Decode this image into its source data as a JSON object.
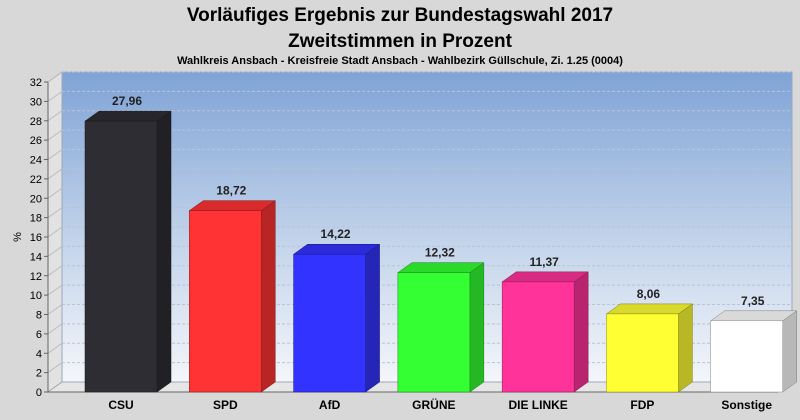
{
  "chart_data": {
    "type": "bar",
    "title": "Vorläufiges Ergebnis zur Bundestagswahl 2017",
    "subtitle": "Zweitstimmen in Prozent",
    "caption": "Wahlkreis Ansbach - Kreisfreie Stadt Ansbach - Wahlbezirk Güllschule, Zi. 1.25 (0004)",
    "ylabel": "%",
    "ylim": [
      0,
      32
    ],
    "yticks": [
      0,
      2,
      4,
      6,
      8,
      10,
      12,
      14,
      16,
      18,
      20,
      22,
      24,
      26,
      28,
      30,
      32
    ],
    "categories": [
      "CSU",
      "SPD",
      "AfD",
      "GRÜNE",
      "DIE LINKE",
      "FDP",
      "Sonstige"
    ],
    "values": [
      27.96,
      18.72,
      14.22,
      12.32,
      11.37,
      8.06,
      7.35
    ],
    "value_labels": [
      "27,96",
      "18,72",
      "14,22",
      "12,32",
      "11,37",
      "8,06",
      "7,35"
    ],
    "colors": [
      "#2d2d33",
      "#ff3333",
      "#3333ff",
      "#33ff33",
      "#ff3399",
      "#ffff33",
      "#ffffff"
    ],
    "grid": true
  }
}
